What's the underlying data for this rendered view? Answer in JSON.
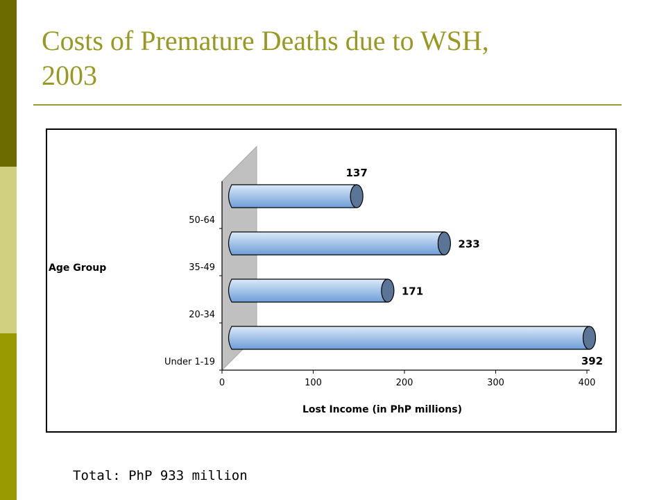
{
  "slide": {
    "title_line1": "Costs of Premature Deaths due to WSH,",
    "title_line2": "2003",
    "footer": "Total: PhP 933 million"
  },
  "colors": {
    "bar_fill_top": "#dbe9f8",
    "bar_fill_bottom": "#6d9ed8",
    "bar_cap": "#5a7595",
    "back_wall": "#c0c0c0",
    "title": "#999922"
  },
  "chart_data": {
    "type": "bar",
    "orientation": "horizontal",
    "style": "3d-cylinder",
    "categories": [
      "Under 1-19",
      "20-34",
      "35-49",
      "50-64"
    ],
    "values": [
      392,
      171,
      233,
      137
    ],
    "data_labels": [
      "392",
      "171",
      "233",
      "137"
    ],
    "xlabel": "Lost Income (in PhP millions)",
    "ylabel": "Age Group",
    "xlim": [
      0,
      400
    ],
    "xticks": [
      0,
      100,
      200,
      300,
      400
    ],
    "grid": false,
    "legend": "none"
  }
}
